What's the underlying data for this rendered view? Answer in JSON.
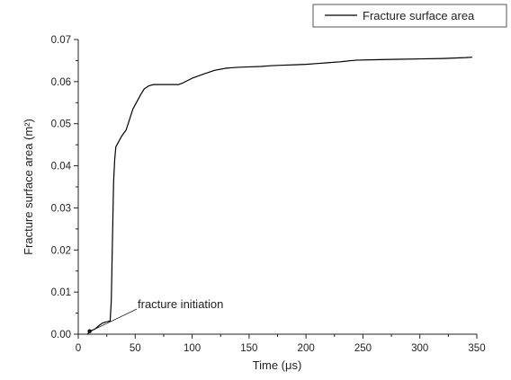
{
  "chart_data": {
    "type": "line",
    "xlabel": "Time (μs)",
    "ylabel": "Fracture surface area (m²)",
    "xlim": [
      0,
      350
    ],
    "ylim": [
      0,
      0.07
    ],
    "xticks": [
      0,
      50,
      100,
      150,
      200,
      250,
      300,
      350
    ],
    "yticks": [
      0.0,
      0.01,
      0.02,
      0.03,
      0.04,
      0.05,
      0.06,
      0.07
    ],
    "xtick_labels": [
      "0",
      "50",
      "100",
      "150",
      "200",
      "250",
      "300",
      "350"
    ],
    "ytick_labels": [
      "0.00",
      "0.01",
      "0.02",
      "0.03",
      "0.04",
      "0.05",
      "0.06",
      "0.07"
    ],
    "grid": false,
    "legend": {
      "position": "top-right",
      "entries": [
        "Fracture surface area"
      ]
    },
    "annotations": [
      {
        "text": "fracture initiation",
        "x": 10,
        "y": 0.0005
      }
    ],
    "series": [
      {
        "name": "Fracture surface area",
        "color": "#000000",
        "x": [
          8,
          9,
          10,
          11,
          12,
          15,
          18,
          21,
          24,
          26,
          27,
          28,
          29,
          30,
          31,
          32,
          33,
          35,
          38,
          42,
          45,
          48,
          52,
          55,
          58,
          62,
          66,
          70,
          80,
          88,
          92,
          100,
          110,
          120,
          130,
          140,
          150,
          160,
          170,
          180,
          190,
          200,
          210,
          220,
          230,
          240,
          245,
          260,
          280,
          300,
          320,
          330,
          340,
          346
        ],
        "y": [
          0.0,
          0.0003,
          0.0005,
          0.0007,
          0.0009,
          0.0013,
          0.002,
          0.0026,
          0.0029,
          0.003,
          0.0031,
          0.0031,
          0.008,
          0.022,
          0.036,
          0.0415,
          0.0445,
          0.0455,
          0.047,
          0.0485,
          0.051,
          0.0535,
          0.0555,
          0.057,
          0.0583,
          0.059,
          0.0593,
          0.0593,
          0.0593,
          0.0593,
          0.0597,
          0.0608,
          0.0618,
          0.0627,
          0.0632,
          0.0634,
          0.0635,
          0.0636,
          0.0638,
          0.0639,
          0.064,
          0.0641,
          0.0643,
          0.0645,
          0.0647,
          0.065,
          0.0651,
          0.0652,
          0.0653,
          0.0654,
          0.0655,
          0.0656,
          0.0657,
          0.0658
        ]
      }
    ]
  }
}
